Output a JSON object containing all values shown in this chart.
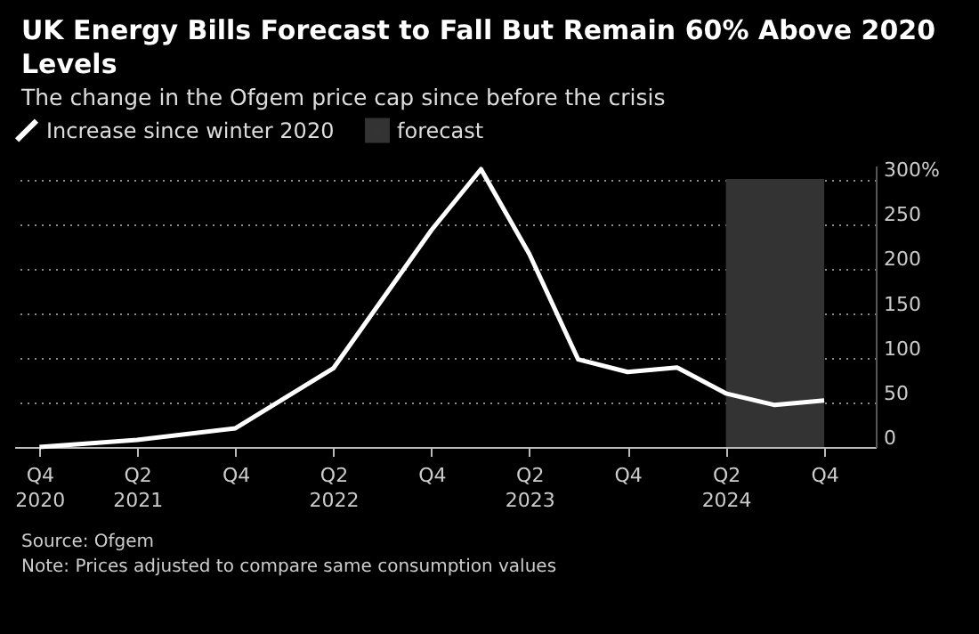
{
  "chart_data": {
    "type": "line",
    "title": "UK Energy Bills Forecast to Fall But Remain 60% Above 2020 Levels",
    "subtitle": "The change in the Ofgem price cap since before the crisis",
    "x": [
      "2020-10",
      "2021-04",
      "2021-10",
      "2022-04",
      "2022-10",
      "2023-01",
      "2023-04",
      "2023-07",
      "2023-10",
      "2024-01",
      "2024-04",
      "2024-07",
      "2024-10"
    ],
    "series": [
      {
        "name": "Increase since winter 2020",
        "color": "#ffffff",
        "values": [
          0,
          8,
          21,
          88,
          243,
          311,
          216,
          98,
          84,
          89,
          60,
          47,
          52
        ]
      }
    ],
    "xlim": [
      "2020-08-15",
      "2025-01-05"
    ],
    "xticks": [
      {
        "value": "2020-10",
        "label": "Q4 2020"
      },
      {
        "value": "2021-04",
        "label": "Q2 2021"
      },
      {
        "value": "2021-10",
        "label": "Q4"
      },
      {
        "value": "2022-04",
        "label": "Q2 2022"
      },
      {
        "value": "2022-10",
        "label": "Q4"
      },
      {
        "value": "2023-04",
        "label": "Q2 2023"
      },
      {
        "value": "2023-10",
        "label": "Q4"
      },
      {
        "value": "2024-04",
        "label": "Q2 2024"
      },
      {
        "value": "2024-10",
        "label": "Q4"
      }
    ],
    "ylim": [
      0,
      315
    ],
    "yticks": [
      0,
      50,
      100,
      150,
      200,
      250,
      {
        "value": 300,
        "label": "300%"
      }
    ],
    "bands": [
      {
        "axis": "x",
        "from": "2024-04",
        "to": "2024-10",
        "label": "forecast",
        "color": "#333333"
      }
    ],
    "grid": "y",
    "legend": "top left",
    "marker": "none",
    "line_style": "solid",
    "annotations": [
      "Source: Ofgem",
      "Note: Prices adjusted to compare same consumption values"
    ]
  }
}
